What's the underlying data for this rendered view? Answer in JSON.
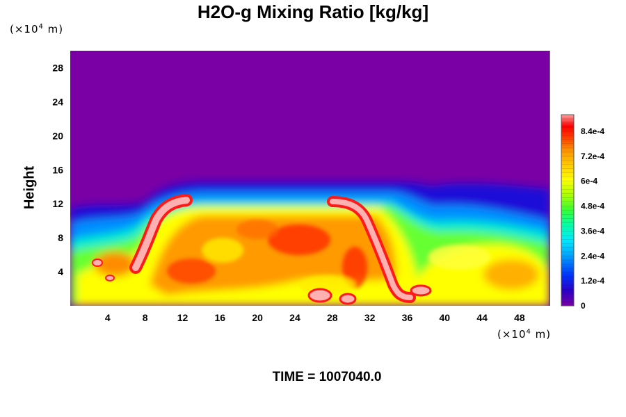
{
  "chart_data": {
    "type": "heatmap",
    "title": "H2O-g Mixing Ratio [kg/kg]",
    "ylabel": "Height",
    "x_unit": {
      "prefix": "(×10",
      "exp": "4",
      "suffix": " m)"
    },
    "y_unit": {
      "prefix": "(×10",
      "exp": "4",
      "suffix": " m)"
    },
    "xlim": [
      0,
      51.2
    ],
    "ylim": [
      0,
      30
    ],
    "x_ticks": [
      "4",
      "8",
      "12",
      "16",
      "20",
      "24",
      "28",
      "32",
      "36",
      "40",
      "44",
      "48"
    ],
    "y_ticks": [
      "4",
      "8",
      "12",
      "16",
      "20",
      "24",
      "28"
    ],
    "colorbar": {
      "range": [
        0,
        0.00092
      ],
      "labels": [
        "0",
        "1.2e-4",
        "2.4e-4",
        "3.6e-4",
        "4.8e-4",
        "6e-4",
        "7.2e-4",
        "8.4e-4"
      ],
      "colors": [
        "#7a00a6",
        "#2b00c8",
        "#0033ff",
        "#0099ff",
        "#00e0ff",
        "#00ffaa",
        "#33ff33",
        "#aaff00",
        "#ffff00",
        "#ffc800",
        "#ff8c00",
        "#ff3c00",
        "#ff0000",
        "#ffa0a0"
      ]
    },
    "field_description_values": {
      "background": 0,
      "dry_layer_top_height": 12.5,
      "interior_typical": 0.0006,
      "max_value": 0.00092
    },
    "footer": "TIME = 1007040.0"
  }
}
